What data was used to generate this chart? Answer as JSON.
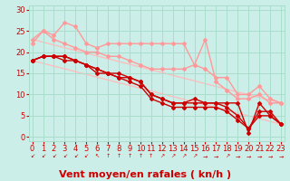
{
  "xlabel": "Vent moyen/en rafales ( kn/h )",
  "bg_color": "#cceee8",
  "grid_color": "#aaddcc",
  "x_ticks": [
    0,
    1,
    2,
    3,
    4,
    5,
    6,
    7,
    8,
    9,
    10,
    11,
    12,
    13,
    14,
    15,
    16,
    17,
    18,
    19,
    20,
    21,
    22,
    23
  ],
  "y_ticks": [
    0,
    5,
    10,
    15,
    20,
    25,
    30
  ],
  "xlim": [
    -0.3,
    23.3
  ],
  "ylim": [
    -1,
    31
  ],
  "line1": {
    "x": [
      0,
      1,
      2,
      3,
      4,
      5,
      6,
      7,
      8,
      9,
      10,
      11,
      12,
      13,
      14,
      15,
      16,
      17,
      18,
      19,
      20,
      21,
      22,
      23
    ],
    "y": [
      18,
      19,
      19,
      19,
      18,
      17,
      16,
      15,
      15,
      14,
      13,
      10,
      9,
      8,
      8,
      8,
      8,
      8,
      8,
      8,
      1,
      8,
      5,
      3
    ],
    "color": "#cc0000",
    "lw": 1.0,
    "marker": "D",
    "ms": 2.0
  },
  "line2": {
    "x": [
      0,
      1,
      2,
      3,
      4,
      5,
      6,
      7,
      8,
      9,
      10,
      11,
      12,
      13,
      14,
      15,
      16,
      17,
      18,
      19,
      20,
      21,
      22,
      23
    ],
    "y": [
      18,
      19,
      19,
      19,
      18,
      17,
      16,
      15,
      14,
      14,
      13,
      10,
      9,
      8,
      8,
      9,
      8,
      8,
      7,
      5,
      2,
      6,
      6,
      3
    ],
    "color": "#cc0000",
    "lw": 1.0,
    "marker": "D",
    "ms": 2.0
  },
  "line3": {
    "x": [
      0,
      1,
      2,
      3,
      4,
      5,
      6,
      7,
      8,
      9,
      10,
      11,
      12,
      13,
      14,
      15,
      16,
      17,
      18,
      19,
      20,
      21,
      22,
      23
    ],
    "y": [
      18,
      19,
      19,
      18,
      18,
      17,
      15,
      15,
      14,
      13,
      12,
      9,
      8,
      7,
      7,
      7,
      7,
      7,
      6,
      4,
      2,
      5,
      5,
      3
    ],
    "color": "#cc0000",
    "lw": 1.0,
    "marker": "D",
    "ms": 2.0
  },
  "line4": {
    "x": [
      0,
      1,
      2,
      3,
      4,
      5,
      6,
      7,
      8,
      9,
      10,
      11,
      12,
      13,
      14,
      15,
      16,
      17,
      18,
      19,
      20,
      21,
      22,
      23
    ],
    "y": [
      22,
      25,
      24,
      27,
      26,
      22,
      21,
      22,
      22,
      22,
      22,
      22,
      22,
      22,
      22,
      17,
      16,
      14,
      14,
      10,
      10,
      12,
      9,
      8
    ],
    "color": "#ff9999",
    "lw": 1.0,
    "marker": "D",
    "ms": 2.0
  },
  "line5": {
    "x": [
      0,
      1,
      2,
      3,
      4,
      5,
      6,
      7,
      8,
      9,
      10,
      11,
      12,
      13,
      14,
      15,
      16,
      17,
      18,
      19,
      20,
      21,
      22,
      23
    ],
    "y": [
      23,
      25,
      23,
      22,
      21,
      20,
      20,
      19,
      19,
      18,
      17,
      16,
      16,
      16,
      16,
      17,
      23,
      13,
      11,
      9,
      9,
      10,
      8,
      8
    ],
    "color": "#ff9999",
    "lw": 1.0,
    "marker": "D",
    "ms": 2.0
  },
  "regline1": {
    "x": [
      0,
      23
    ],
    "y": [
      23,
      8
    ],
    "color": "#ffbbbb",
    "lw": 0.9
  },
  "regline2": {
    "x": [
      0,
      23
    ],
    "y": [
      18,
      3
    ],
    "color": "#ffbbbb",
    "lw": 0.9
  },
  "xlabel_color": "#cc0000",
  "tick_color": "#cc0000",
  "xlabel_fontsize": 8,
  "tick_fontsize": 6
}
